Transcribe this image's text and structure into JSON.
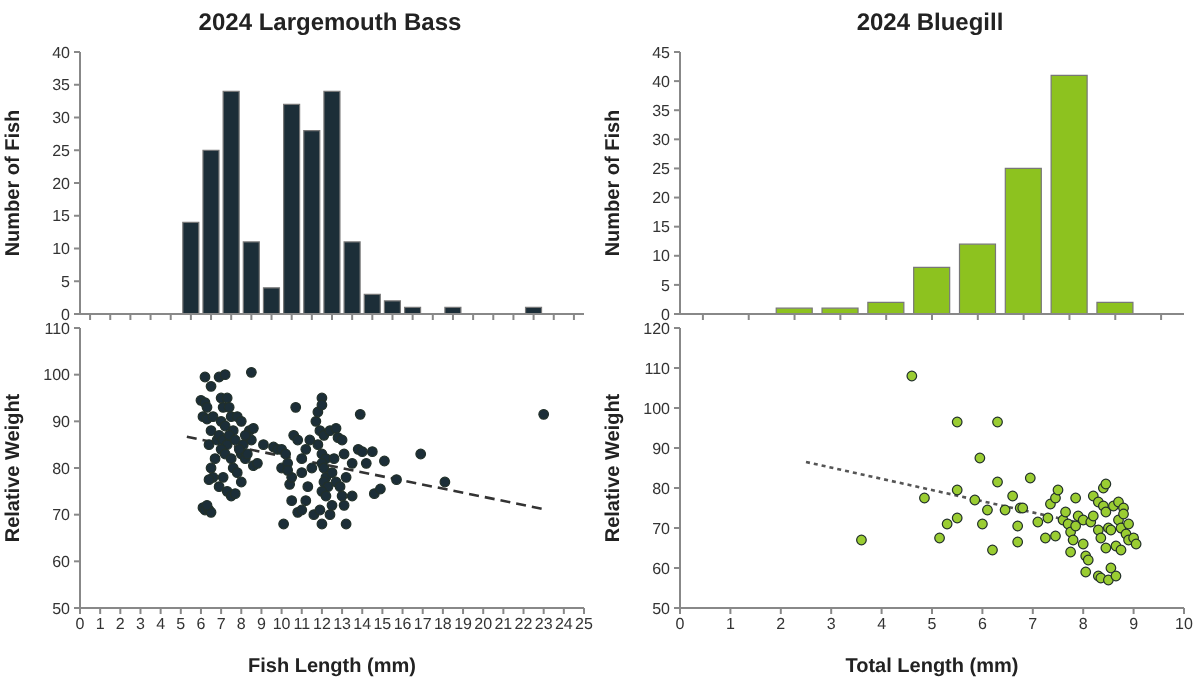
{
  "chart_data": [
    {
      "type": "bar",
      "title": "2024 Largemouth Bass",
      "ylabel": "Number of Fish",
      "categories": [
        null,
        null,
        null,
        null,
        null,
        null,
        null,
        null,
        null,
        null,
        null,
        null,
        null,
        null,
        null,
        null,
        null,
        null,
        null,
        null,
        null,
        null,
        null,
        null,
        null
      ],
      "series": [
        {
          "color": "#1c2e38",
          "values": [
            0,
            0,
            0,
            0,
            0,
            14,
            25,
            34,
            11,
            4,
            32,
            28,
            34,
            11,
            3,
            2,
            1,
            0,
            1,
            0,
            0,
            0,
            1,
            0,
            0
          ]
        }
      ],
      "ylim": [
        0,
        40
      ],
      "yticks": [
        0,
        5,
        10,
        15,
        20,
        25,
        30,
        35,
        40
      ],
      "tick_labels": "y",
      "grid": false,
      "legend": false
    },
    {
      "type": "bar",
      "title": "2024 Bluegill",
      "ylabel": "Number of Fish",
      "categories": [
        null,
        null,
        null,
        null,
        null,
        null,
        null,
        null,
        null,
        null,
        null
      ],
      "series": [
        {
          "color": "#8dc21f",
          "values": [
            0,
            0,
            1,
            1,
            2,
            8,
            12,
            25,
            41,
            2,
            0
          ]
        }
      ],
      "ylim": [
        0,
        45
      ],
      "yticks": [
        0,
        5,
        10,
        15,
        20,
        25,
        30,
        35,
        40,
        45
      ],
      "tick_labels": "y",
      "grid": false,
      "legend": false
    },
    {
      "type": "scatter",
      "xlabel": "Fish Length (mm)",
      "ylabel": "Relative Weight",
      "xlim": [
        0,
        25
      ],
      "xticks": [
        0,
        1,
        2,
        3,
        4,
        5,
        6,
        7,
        8,
        9,
        10,
        11,
        12,
        13,
        14,
        15,
        16,
        17,
        18,
        19,
        20,
        21,
        22,
        23,
        24,
        25
      ],
      "ylim": [
        50,
        110
      ],
      "yticks": [
        50,
        60,
        70,
        80,
        90,
        100,
        110
      ],
      "grid": false,
      "legend": false,
      "marker": "circle",
      "series": [
        {
          "type": "scatter",
          "color": "#1c2e38",
          "x": [
            6.1,
            6.2,
            6.4,
            6.5,
            6.3,
            6.2,
            6.5,
            6.0,
            6.2,
            6.3,
            6.1,
            6.3,
            6.6,
            6.5,
            6.4,
            6.5,
            6.6,
            6.4,
            6.7,
            6.8,
            6.9,
            7.2,
            7.0,
            7.1,
            7.0,
            7.2,
            6.9,
            7.1,
            7.3,
            7.0,
            7.2,
            6.9,
            7.1,
            7.3,
            7.5,
            7.3,
            7.4,
            7.5,
            7.6,
            7.4,
            7.7,
            7.5,
            7.6,
            7.8,
            7.8,
            8.0,
            8.1,
            8.0,
            8.2,
            8.0,
            7.7,
            8.5,
            8.4,
            8.6,
            8.5,
            8.3,
            8.6,
            8.8,
            7.9,
            8.2,
            9.1,
            9.6,
            9.8,
            10.0,
            10.2,
            10.0,
            10.1,
            10.3,
            10.4,
            10.5,
            10.6,
            10.7,
            10.8,
            10.5,
            10.8,
            11.0,
            11.2,
            11.0,
            11.3,
            11.5,
            11.2,
            11.6,
            11.7,
            11.8,
            12.0,
            12.0,
            11.9,
            12.1,
            11.8,
            12.0,
            12.2,
            12.0,
            12.1,
            12.2,
            12.1,
            12.3,
            12.0,
            12.2,
            11.9,
            12.0,
            12.4,
            12.5,
            12.6,
            12.4,
            12.7,
            12.8,
            12.7,
            12.9,
            13.0,
            13.1,
            13.2,
            13.1,
            13.2,
            13.5,
            13.5,
            13.8,
            13.9,
            14.0,
            14.2,
            14.5,
            14.6,
            14.9,
            15.1,
            15.7,
            16.9,
            18.1,
            23.0,
            11.4,
            10.3,
            12.5,
            13.0,
            11.0
          ],
          "values": [
            71.5,
            71,
            71,
            70.5,
            72,
            99.5,
            97.5,
            94.5,
            94,
            93,
            91,
            90.5,
            91,
            88,
            85,
            80,
            78,
            77.5,
            82,
            86,
            99.5,
            100,
            95,
            93,
            90,
            89,
            87,
            86,
            85,
            84,
            83,
            76,
            78,
            75,
            74,
            95,
            93,
            91,
            88,
            87,
            86,
            82,
            80,
            79,
            91,
            90,
            85,
            83,
            82,
            77,
            74.5,
            100.5,
            88,
            88.5,
            86,
            83,
            80.5,
            81,
            84,
            87,
            85,
            84.5,
            84,
            84,
            83,
            80,
            68,
            81,
            76.5,
            78,
            87,
            93,
            86,
            73,
            70.5,
            82,
            84,
            79,
            76,
            80,
            73,
            70,
            90,
            92,
            95,
            93.5,
            88,
            87,
            85,
            83,
            82,
            81,
            80,
            78,
            77,
            76,
            75,
            74,
            71,
            68,
            70,
            79,
            82,
            88,
            88.5,
            86.5,
            77,
            76,
            86,
            83,
            78,
            72,
            68,
            74,
            81,
            84,
            91.5,
            83.5,
            81,
            83.5,
            74.5,
            75.5,
            81.5,
            77.5,
            83,
            77,
            91.5,
            86,
            79.5,
            72,
            74,
            71
          ]
        },
        {
          "type": "line",
          "color": "#333333",
          "line_style": "dashed",
          "marker": "none",
          "x": [
            5.3,
            23
          ],
          "values": [
            86.7,
            71.2
          ]
        }
      ]
    },
    {
      "type": "scatter",
      "xlabel": "Total Length (mm)",
      "ylabel": "Relative Weight",
      "xlim": [
        0,
        10
      ],
      "xticks": [
        0,
        1,
        2,
        3,
        4,
        5,
        6,
        7,
        8,
        9,
        10
      ],
      "ylim": [
        50,
        120
      ],
      "yticks": [
        50,
        60,
        70,
        80,
        90,
        100,
        110,
        120
      ],
      "grid": false,
      "legend": false,
      "marker": "circle",
      "series": [
        {
          "type": "scatter",
          "color": "#9acd32",
          "x": [
            3.6,
            4.6,
            4.85,
            5.15,
            5.3,
            5.5,
            5.5,
            5.5,
            5.85,
            5.95,
            6.0,
            6.1,
            6.2,
            6.3,
            6.3,
            6.45,
            6.6,
            6.7,
            6.7,
            6.75,
            6.8,
            6.95,
            7.1,
            7.25,
            7.3,
            7.35,
            7.45,
            7.5,
            7.45,
            7.6,
            7.65,
            7.7,
            7.75,
            7.75,
            7.8,
            7.85,
            7.85,
            7.9,
            8.0,
            8.0,
            8.05,
            8.05,
            8.1,
            8.15,
            8.2,
            8.3,
            8.3,
            8.35,
            8.3,
            8.35,
            8.4,
            8.45,
            8.4,
            8.45,
            8.5,
            8.45,
            8.5,
            8.55,
            8.6,
            8.65,
            8.65,
            8.7,
            8.7,
            8.75,
            8.75,
            8.8,
            8.8,
            8.85,
            8.9,
            8.9,
            9.0,
            9.05,
            8.55,
            8.2
          ],
          "values": [
            67,
            108,
            77.5,
            67.5,
            71,
            79.5,
            72.5,
            96.5,
            77,
            87.5,
            71,
            74.5,
            64.5,
            96.5,
            81.5,
            74.5,
            78,
            70.5,
            66.5,
            75,
            75,
            82.5,
            71.5,
            67.5,
            72.5,
            76,
            77.5,
            79.5,
            68,
            72,
            74,
            71,
            69,
            64,
            67,
            70.5,
            77.5,
            73,
            72,
            66,
            63,
            59,
            62,
            71.5,
            78,
            76.5,
            69.5,
            67.5,
            58,
            57.5,
            80,
            81,
            75.5,
            74,
            70,
            65,
            57,
            60,
            75.5,
            58,
            65.5,
            76.5,
            72,
            70,
            64.5,
            75,
            73.5,
            68.5,
            67,
            71,
            67.5,
            66,
            69.5,
            73
          ]
        },
        {
          "type": "line",
          "color": "#555555",
          "line_style": "dotted",
          "marker": "none",
          "x": [
            2.5,
            9.1
          ],
          "values": [
            86.5,
            68
          ]
        }
      ]
    }
  ]
}
